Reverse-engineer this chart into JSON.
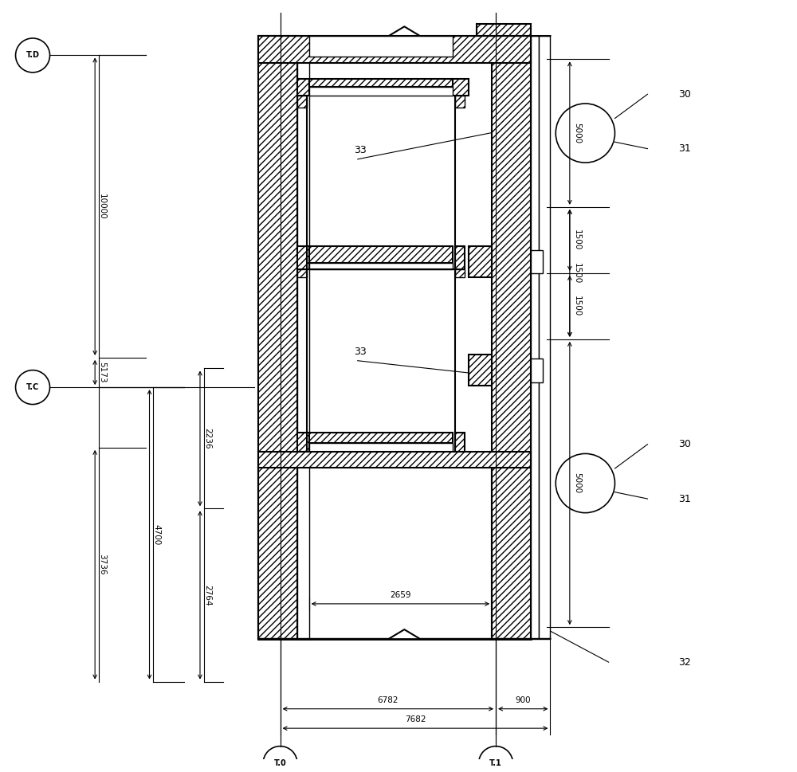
{
  "bg_color": "#ffffff",
  "line_color": "#000000",
  "fig_width": 10.0,
  "fig_height": 9.69,
  "dpi": 100,
  "xlim": [
    0,
    1000
  ],
  "ylim": [
    0,
    969
  ],
  "labels": {
    "TD": "T.D",
    "TC": "T.C",
    "T0": "T.0",
    "T1": "T.1",
    "10000": "10000",
    "5173": "5173",
    "4700": "4700",
    "3736": "3736",
    "2236": "2236",
    "2764": "2764",
    "2659": "2659",
    "6782": "6782",
    "900": "900",
    "7682": "7682",
    "5000t": "5000",
    "1500t": "1500",
    "1500b": "1500",
    "5000b": "5000",
    "30t": "30",
    "31t": "31",
    "30b": "30",
    "31b": "31",
    "32": "32",
    "33t": "33",
    "33b": "33"
  }
}
